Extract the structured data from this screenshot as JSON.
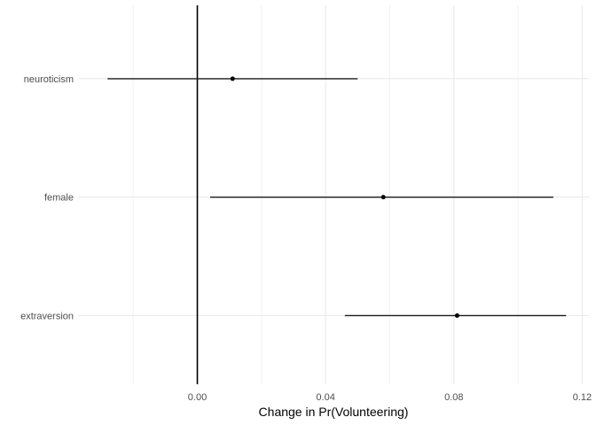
{
  "chart_data": {
    "type": "scatter",
    "subtype": "dot-whisker-coefficient-plot",
    "title": "",
    "xlabel": "Change in Pr(Volunteering)",
    "ylabel": "",
    "categories": [
      "neuroticism",
      "female",
      "extraversion"
    ],
    "points": [
      {
        "label": "neuroticism",
        "estimate": 0.011,
        "ci_low": -0.028,
        "ci_high": 0.05
      },
      {
        "label": "female",
        "estimate": 0.058,
        "ci_low": 0.004,
        "ci_high": 0.111
      },
      {
        "label": "extraversion",
        "estimate": 0.081,
        "ci_low": 0.046,
        "ci_high": 0.115
      }
    ],
    "xlim": [
      -0.0372,
      0.1221
    ],
    "x_major_ticks": [
      0.0,
      0.04,
      0.08,
      0.12
    ],
    "x_tick_labels": [
      "0.00",
      "0.04",
      "0.08",
      "0.12"
    ],
    "x_minor_ticks": [
      -0.02,
      0.02,
      0.06,
      0.1
    ],
    "reference_line_x": 0,
    "legend_position": "none",
    "grid": "vertical major+minor, horizontal major per category, no axis tick marks (theme_minimal)",
    "colors": {
      "background": "#FFFFFF",
      "grid_major": "#E8E8E8",
      "grid_minor": "#F2F2F2",
      "reference_line": "#000000",
      "ci_line": "#1A1A1A",
      "point": "#000000",
      "axis_text": "#4D4D4D",
      "axis_title": "#000000"
    }
  }
}
